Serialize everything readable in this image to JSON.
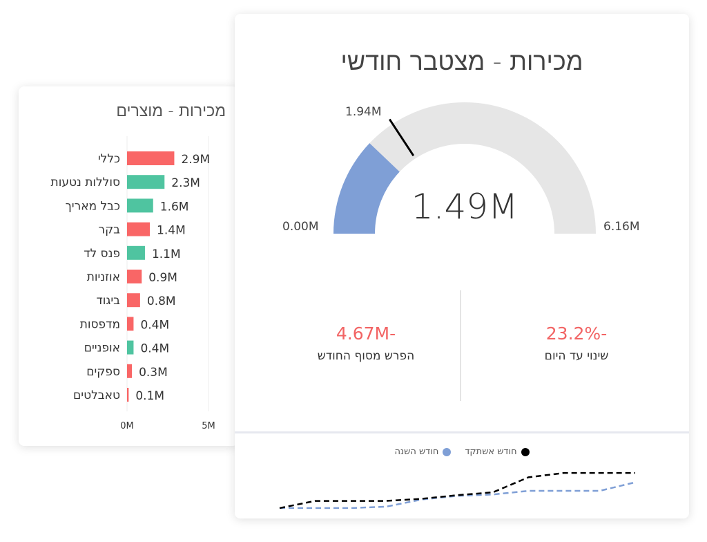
{
  "products_card": {
    "title": "מכירות - מוצרים"
  },
  "monthly_card": {
    "title": "מכירות - מצטבר חודשי",
    "gauge": {
      "value": 1.49,
      "value_label": "1.49M",
      "min": 0,
      "min_label": "0.00M",
      "max": 6.16,
      "max_label": "6.16M",
      "target": 1.94,
      "target_label": "1.94M",
      "fill_color": "#7f9fd6",
      "track_color": "#e6e6e6"
    },
    "kpis": [
      {
        "value": "-4.67M",
        "label": "הפרש מסוף החודש"
      },
      {
        "value": "-23.2%",
        "label": "שינוי עד היום"
      }
    ],
    "legend": [
      {
        "label": "חודש אשתקד",
        "color": "#000000"
      },
      {
        "label": "חודש השנה",
        "color": "#7f9fd6"
      }
    ]
  },
  "chart_data": [
    {
      "type": "bar",
      "title": "מכירות - מוצרים",
      "orientation": "horizontal",
      "categories": [
        "כללי",
        "סוללות נטעות",
        "כבל מאריך",
        "בקר",
        "פנס לד",
        "אוזניות",
        "ביגוד",
        "מדפסות",
        "אופניים",
        "ספקים",
        "טאבלטים"
      ],
      "values": [
        2.9,
        2.3,
        1.6,
        1.4,
        1.1,
        0.9,
        0.8,
        0.4,
        0.4,
        0.3,
        0.1
      ],
      "value_labels": [
        "2.9M",
        "2.3M",
        "1.6M",
        "1.4M",
        "1.1M",
        "0.9M",
        "0.8M",
        "0.4M",
        "0.4M",
        "0.3M",
        "0.1M"
      ],
      "colors": [
        "#f96666",
        "#4fc4a0",
        "#4fc4a0",
        "#f96666",
        "#4fc4a0",
        "#f96666",
        "#f96666",
        "#f96666",
        "#4fc4a0",
        "#f96666",
        "#f96666"
      ],
      "xlim": [
        0,
        5
      ],
      "xticks": [
        "0M",
        "5M"
      ]
    },
    {
      "type": "line",
      "legend_placement": "top-center",
      "x": [
        1,
        2,
        3,
        4,
        5,
        6,
        7,
        8,
        9,
        10,
        11
      ],
      "ylim": [
        0,
        55
      ],
      "series": [
        {
          "name": "חודש אשתקד",
          "color": "#000000",
          "values": [
            2,
            12,
            12,
            12,
            15,
            20,
            24,
            45,
            51,
            51,
            51
          ]
        },
        {
          "name": "חודש השנה",
          "color": "#7f9fd6",
          "values": [
            2,
            2,
            2,
            4,
            14,
            19,
            21,
            26,
            26,
            26,
            38
          ]
        }
      ]
    }
  ]
}
